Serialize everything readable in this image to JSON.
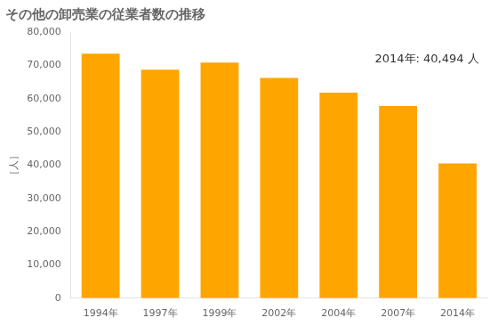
{
  "chart_data": {
    "type": "bar",
    "title": "その他の卸売業の従業者数の推移",
    "ylabel": "［人］",
    "annotation": "2014年: 40,494 人",
    "categories": [
      "1994年",
      "1997年",
      "1999年",
      "2002年",
      "2004年",
      "2007年",
      "2014年"
    ],
    "values": [
      73500,
      68700,
      70800,
      66200,
      61800,
      57800,
      40494
    ],
    "color": "#FFA500",
    "ylim": [
      0,
      80000
    ],
    "yticks": [
      0,
      {
        "value": 10000,
        "label": "10,000"
      },
      {
        "value": 20000,
        "label": "20,000"
      },
      {
        "value": 30000,
        "label": "30,000"
      },
      {
        "value": 40000,
        "label": "40,000"
      },
      {
        "value": 50000,
        "label": "50,000"
      },
      {
        "value": 60000,
        "label": "60,000"
      },
      {
        "value": 70000,
        "label": "70,000"
      },
      {
        "value": 80000,
        "label": "80,000"
      }
    ],
    "grid": false
  }
}
